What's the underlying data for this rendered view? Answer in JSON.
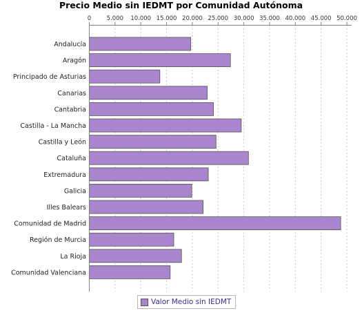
{
  "chart_data": {
    "type": "bar",
    "orientation": "horizontal",
    "title": "Precio Medio sin IEDMT por Comunidad Autónoma",
    "categories": [
      "Andalucía",
      "Aragón",
      "Principado de Asturias",
      "Canarias",
      "Cantabria",
      "Castilla - La Mancha",
      "Castilla y León",
      "Cataluña",
      "Extremadura",
      "Galicia",
      "Illes Balears",
      "Comunidad de Madrid",
      "Región de Murcia",
      "La Rioja",
      "Comunidad Valenciana"
    ],
    "series": [
      {
        "name": "Valor Medio sin IEDMT",
        "color": "#a885cc",
        "values": [
          19700,
          27400,
          13700,
          22900,
          24100,
          29500,
          24600,
          30900,
          23100,
          19900,
          22100,
          48800,
          16400,
          17900,
          15700
        ]
      }
    ],
    "xlim": [
      0,
      51000
    ],
    "ticks": [
      0,
      5000,
      10000,
      15000,
      20000,
      25000,
      30000,
      35000,
      40000,
      45000,
      50000
    ],
    "tick_labels": [
      "0",
      "5.000",
      "10.000",
      "15.000",
      "20.000",
      "25.000",
      "30.000",
      "35.000",
      "40.000",
      "45.000",
      "50.000"
    ],
    "axis_position": "top",
    "grid": true,
    "legend_position": "bottom"
  }
}
